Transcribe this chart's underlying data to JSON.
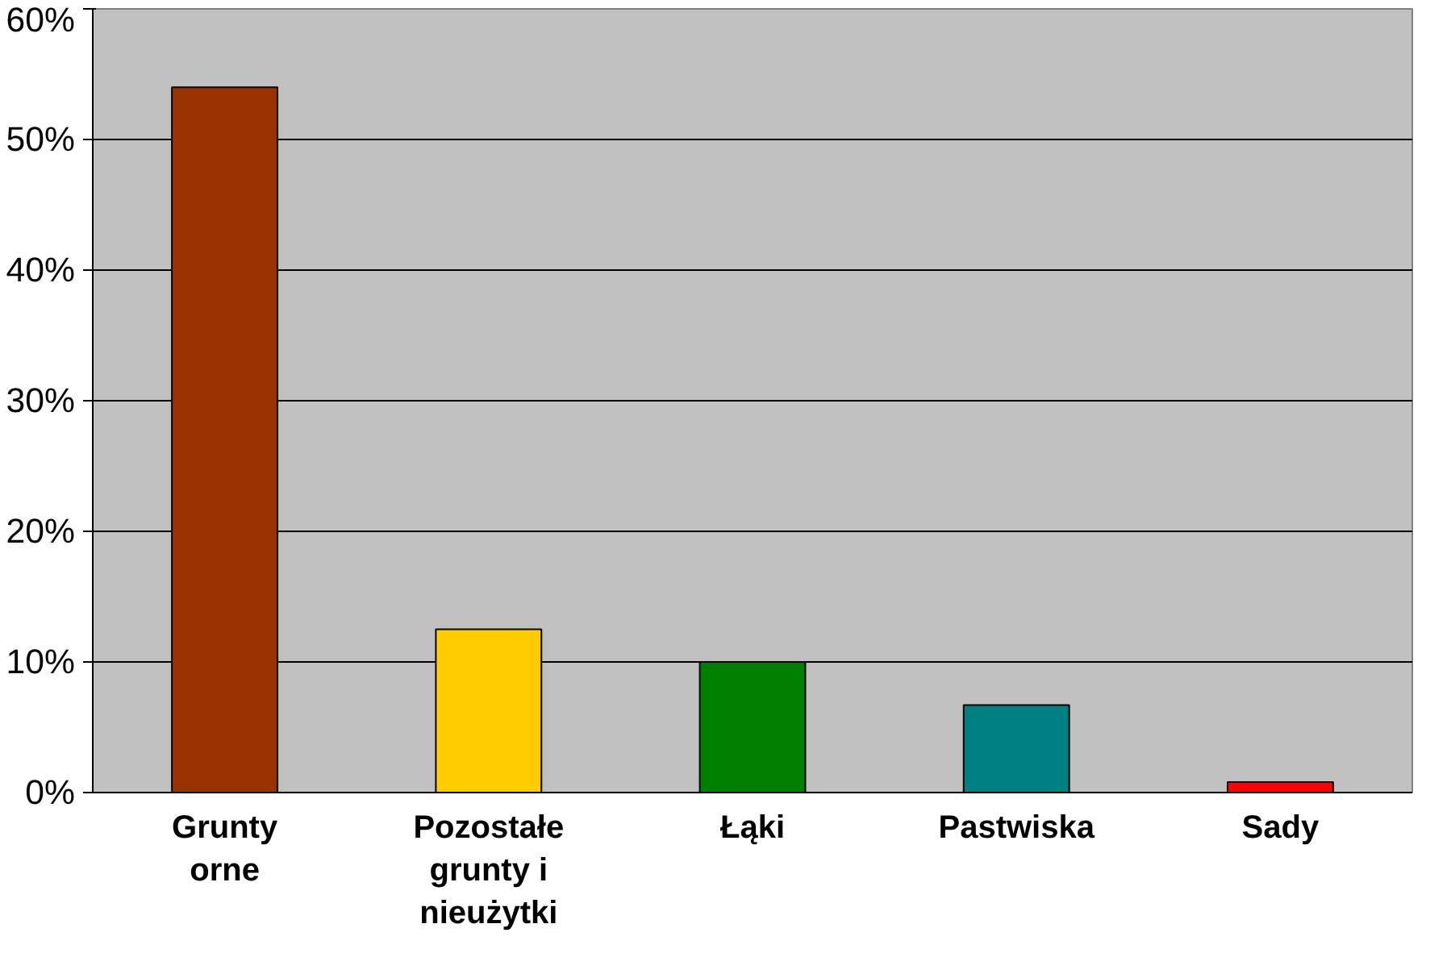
{
  "chart_data": {
    "type": "bar",
    "categories": [
      "Grunty\norne",
      "Pozostałe\ngrunty i\nnieużytki",
      "Łąki",
      "Pastwiska",
      "Sady"
    ],
    "values": [
      54,
      12.5,
      10,
      6.7,
      0.8
    ],
    "colors": [
      "#993300",
      "#ffcc00",
      "#008000",
      "#008080",
      "#ff0000"
    ],
    "ylim": [
      0,
      60
    ],
    "yticks": [
      {
        "value": 0,
        "label": "0%"
      },
      {
        "value": 10,
        "label": "10%"
      },
      {
        "value": 20,
        "label": "20%"
      },
      {
        "value": 30,
        "label": "30%"
      },
      {
        "value": 40,
        "label": "40%"
      },
      {
        "value": 50,
        "label": "50%"
      },
      {
        "value": 60,
        "label": "60%"
      }
    ],
    "grid": "y"
  }
}
